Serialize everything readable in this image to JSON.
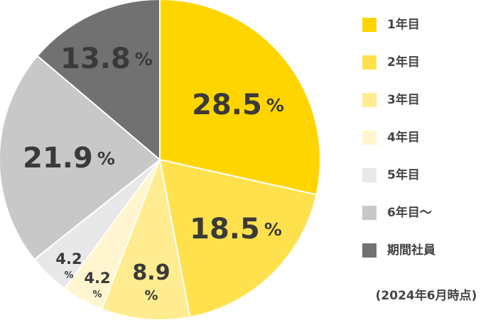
{
  "chart_data": {
    "type": "pie",
    "categories": [
      "1年目",
      "2年目",
      "3年目",
      "4年目",
      "5年目",
      "6年目〜",
      "期間社員"
    ],
    "values": [
      28.5,
      18.5,
      8.9,
      4.2,
      4.2,
      21.9,
      13.8
    ],
    "value_labels": [
      "28.5%",
      "18.5%",
      "8.9%",
      "4.2%",
      "4.2%",
      "21.9%",
      "13.8%"
    ],
    "colors": [
      "#ffd500",
      "#ffe14d",
      "#ffec91",
      "#fff6cf",
      "#e8e8e8",
      "#c8c8c8",
      "#717171"
    ],
    "legend": "right",
    "note": "(2024年6月時点)"
  }
}
